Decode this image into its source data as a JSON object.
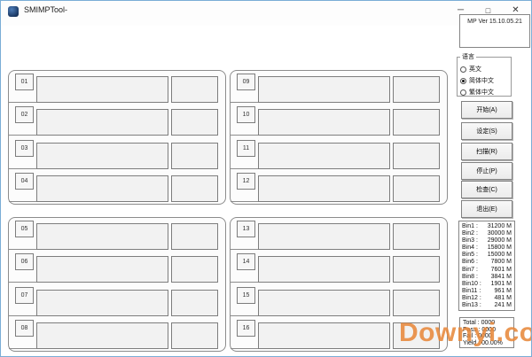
{
  "titlebar": {
    "title": "SMIMPTool-",
    "minimize_glyph": "─",
    "maximize_glyph": "□",
    "close_glyph": "✕"
  },
  "version_label": "MP Ver 15.10.05.21",
  "language": {
    "legend": "语言",
    "options": [
      {
        "label": "英文",
        "selected": false
      },
      {
        "label": "简体中文",
        "selected": true
      },
      {
        "label": "繁体中文",
        "selected": false
      }
    ]
  },
  "action_buttons": [
    {
      "label": "开始(A)"
    },
    {
      "label": "设定(S)"
    },
    {
      "label": "扫描(R)"
    },
    {
      "label": "停止(P)"
    },
    {
      "label": "检查(C)"
    },
    {
      "label": "退出(E)"
    }
  ],
  "slot_groups": [
    [
      "01",
      "02",
      "03",
      "04"
    ],
    [
      "09",
      "10",
      "11",
      "12"
    ],
    [
      "05",
      "06",
      "07",
      "08"
    ],
    [
      "13",
      "14",
      "15",
      "16"
    ]
  ],
  "bins": [
    {
      "name": "Bin1 :",
      "value": "31200 M"
    },
    {
      "name": "Bin2 :",
      "value": "30000 M"
    },
    {
      "name": "Bin3 :",
      "value": "29000 M"
    },
    {
      "name": "Bin4 :",
      "value": "15800 M"
    },
    {
      "name": "Bin5 :",
      "value": "15000 M"
    },
    {
      "name": "Bin6 :",
      "value": "7800 M"
    },
    {
      "name": "Bin7 :",
      "value": "7601 M"
    },
    {
      "name": "Bin8 :",
      "value": "3841 M"
    },
    {
      "name": "Bin10 :",
      "value": "1901 M"
    },
    {
      "name": "Bin11 :",
      "value": "961 M"
    },
    {
      "name": "Bin12 :",
      "value": "481 M"
    },
    {
      "name": "Bin13 :",
      "value": "241 M"
    }
  ],
  "stats": {
    "lines": [
      "Total : 0000",
      "Pass : 0000",
      "Fail : 0000",
      "Yield : 00.00%"
    ]
  },
  "watermark": "Downyi.com",
  "colors": {
    "window_border": "#7aadd6",
    "watermark": "#e8893c",
    "box_fill": "#f2f2f2"
  }
}
